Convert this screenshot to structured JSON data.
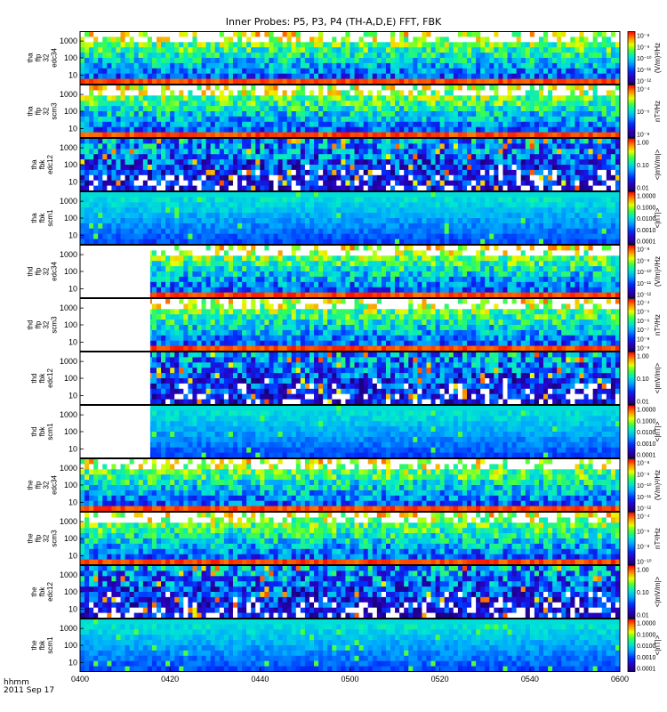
{
  "title": "Inner Probes: P5, P3, P4 (TH-A,D,E) FFT, FBK",
  "stamp": {
    "line1": "hhmm",
    "line2": "2011 Sep 17"
  },
  "x_ticks": [
    "0400",
    "0420",
    "0440",
    "0500",
    "0520",
    "0540",
    "0600"
  ],
  "chart_data": {
    "type": "heatmap",
    "title": "Inner Probes: P5, P3, P4 (TH-A,D,E) FFT, FBK",
    "x": [
      "0400",
      "0420",
      "0440",
      "0500",
      "0520",
      "0540",
      "0600"
    ],
    "xlabel": "hhmm",
    "date": "2011 Sep 17",
    "y_scale": "log",
    "panels": [
      {
        "probe": "tha",
        "label": [
          "tha",
          "ffp",
          "32",
          "edc34"
        ],
        "y_ticks": [
          "1000",
          "100",
          "10"
        ],
        "cb_ticks": [
          "10⁻⁸",
          "10⁻⁹",
          "10⁻¹⁰",
          "10⁻¹¹",
          "10⁻¹²"
        ],
        "units": "(V/m)²/Hz",
        "colormap": "rainbow"
      },
      {
        "probe": "tha",
        "label": [
          "tha",
          "ffp",
          "32",
          "scm3"
        ],
        "y_ticks": [
          "1000",
          "100",
          "10"
        ],
        "cb_ticks": [
          "10⁻⁴",
          "10⁻⁶",
          "10⁻⁸"
        ],
        "units": "nT²/Hz",
        "colormap": "rainbow"
      },
      {
        "probe": "tha",
        "label": [
          "tha",
          "fbk",
          "edc12"
        ],
        "y_ticks": [
          "1000",
          "100",
          "10"
        ],
        "cb_ticks": [
          "1.00",
          "0.10",
          "0.01"
        ],
        "units": "<|mV/m|>",
        "colormap": "rainbow"
      },
      {
        "probe": "tha",
        "label": [
          "tha",
          "fbk",
          "scm1"
        ],
        "y_ticks": [
          "1000",
          "100",
          "10"
        ],
        "cb_ticks": [
          "1.0000",
          "0.1000",
          "0.0100",
          "0.0010",
          "0.0001"
        ],
        "units": "<|nT|>",
        "colormap": "rainbow"
      },
      {
        "probe": "thd",
        "label": [
          "thd",
          "ffp",
          "32",
          "edc34"
        ],
        "y_ticks": [
          "1000",
          "100",
          "10"
        ],
        "cb_ticks": [
          "10⁻⁸",
          "10⁻⁹",
          "10⁻¹⁰",
          "10⁻¹¹",
          "10⁻¹²"
        ],
        "units": "(V/m)²/Hz",
        "colormap": "rainbow"
      },
      {
        "probe": "thd",
        "label": [
          "thd",
          "ffp",
          "32",
          "scm3"
        ],
        "y_ticks": [
          "1000",
          "100",
          "10"
        ],
        "cb_ticks": [
          "10⁻⁴",
          "10⁻⁵",
          "10⁻⁶",
          "10⁻⁷",
          "10⁻⁸",
          "10⁻⁹"
        ],
        "units": "nT²/Hz",
        "colormap": "rainbow"
      },
      {
        "probe": "thd",
        "label": [
          "thd",
          "fbk",
          "edc12"
        ],
        "y_ticks": [
          "1000",
          "100",
          "10"
        ],
        "cb_ticks": [
          "1.00",
          "0.10",
          "0.01"
        ],
        "units": "<|mV/m|>",
        "colormap": "rainbow"
      },
      {
        "probe": "thd",
        "label": [
          "thd",
          "fbk",
          "scm1"
        ],
        "y_ticks": [
          "1000",
          "100",
          "10"
        ],
        "cb_ticks": [
          "1.0000",
          "0.1000",
          "0.0100",
          "0.0010",
          "0.0001"
        ],
        "units": "<|nT|>",
        "colormap": "rainbow"
      },
      {
        "probe": "the",
        "label": [
          "the",
          "ffp",
          "32",
          "edc34"
        ],
        "y_ticks": [
          "1000",
          "100",
          "10"
        ],
        "cb_ticks": [
          "10⁻⁸",
          "10⁻⁹",
          "10⁻¹⁰",
          "10⁻¹¹",
          "10⁻¹²"
        ],
        "units": "(V/m)²/Hz",
        "colormap": "rainbow"
      },
      {
        "probe": "the",
        "label": [
          "the",
          "ffp",
          "32",
          "scm3"
        ],
        "y_ticks": [
          "1000",
          "100",
          "10"
        ],
        "cb_ticks": [
          "10⁻⁴",
          "10⁻⁶",
          "10⁻⁸",
          "10⁻¹⁰"
        ],
        "units": "nT²/Hz",
        "colormap": "rainbow"
      },
      {
        "probe": "the",
        "label": [
          "the",
          "fbk",
          "edc12"
        ],
        "y_ticks": [
          "1000",
          "100",
          "10"
        ],
        "cb_ticks": [
          "1.00",
          "0.10",
          "0.01"
        ],
        "units": "<|mV/m|>",
        "colormap": "rainbow"
      },
      {
        "probe": "the",
        "label": [
          "the",
          "fbk",
          "scm1"
        ],
        "y_ticks": [
          "1000",
          "100",
          "10"
        ],
        "cb_ticks": [
          "1.0000",
          "0.1000",
          "0.0100",
          "0.0010",
          "0.0001"
        ],
        "units": "<|nT|>",
        "colormap": "rainbow"
      }
    ]
  }
}
